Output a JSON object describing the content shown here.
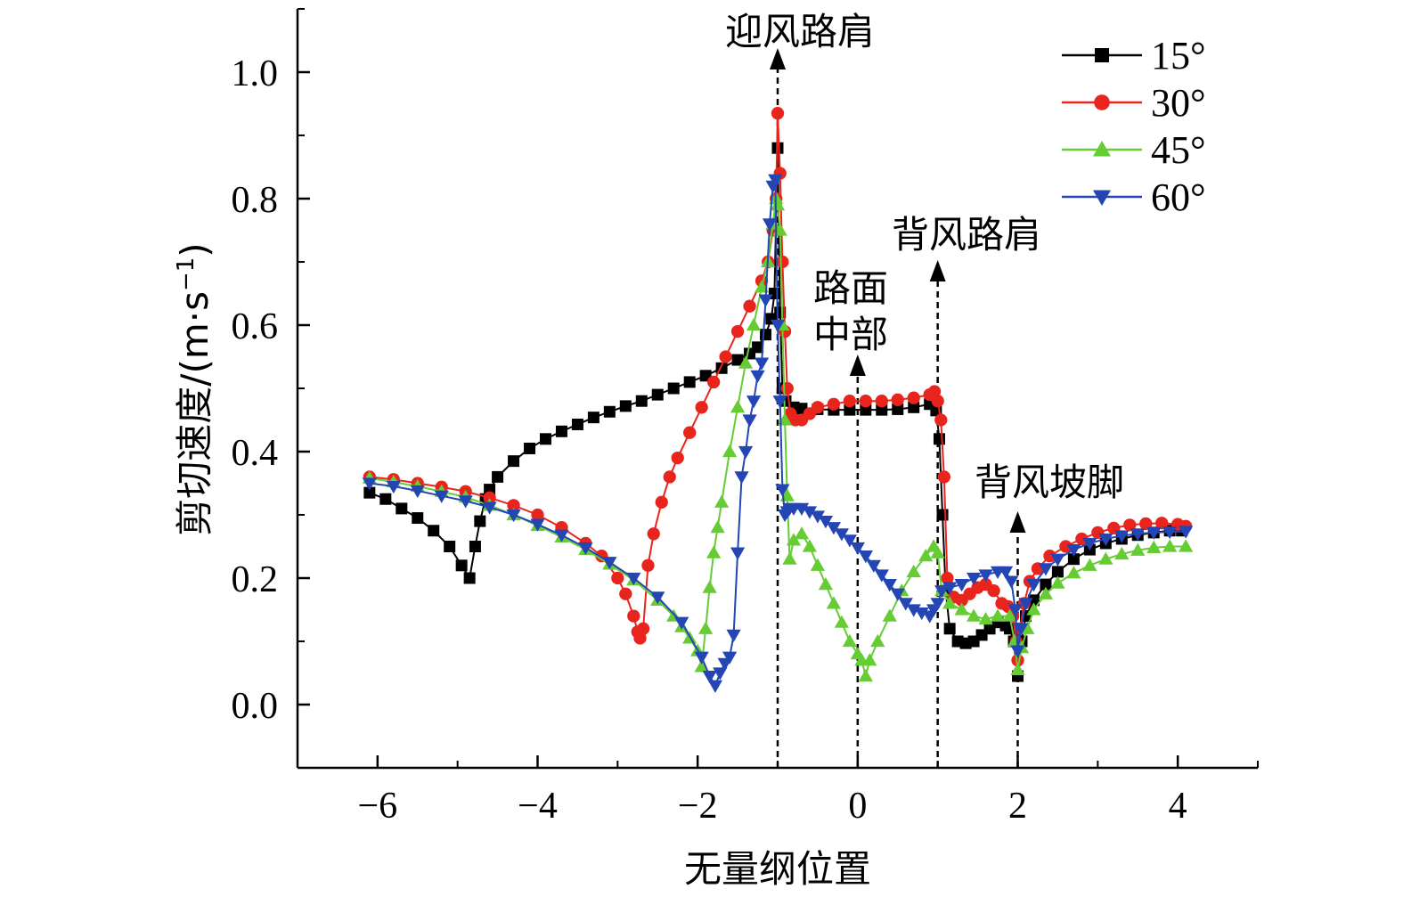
{
  "chart_data": {
    "type": "scatter",
    "title": "",
    "xlabel": "无量纲位置",
    "ylabel": "剪切速度/(m·s",
    "ylabel_sup": "−1",
    "ylabel_close": ")",
    "xlim": [
      -7,
      5
    ],
    "ylim": [
      -0.1,
      1.1
    ],
    "x_ticks": [
      -6,
      -4,
      -2,
      0,
      2,
      4
    ],
    "x_tick_labels": [
      "−6",
      "−4",
      "−2",
      "0",
      "2",
      "4"
    ],
    "y_ticks": [
      0.0,
      0.2,
      0.4,
      0.6,
      0.8,
      1.0
    ],
    "y_tick_labels": [
      "0.0",
      "0.2",
      "0.4",
      "0.6",
      "0.8",
      "1.0"
    ],
    "legend_position": "top-right",
    "grid": false,
    "annotations": [
      {
        "text": "迎风路肩",
        "x": -1
      },
      {
        "text": "路面",
        "text2": "中部",
        "x": 0
      },
      {
        "text": "背风路肩",
        "x": 1
      },
      {
        "text": "背风坡脚",
        "x": 2
      }
    ],
    "series": [
      {
        "name": "15°",
        "color": "#000000",
        "marker": "square",
        "x": [
          -6.1,
          -5.9,
          -5.7,
          -5.5,
          -5.3,
          -5.1,
          -4.95,
          -4.85,
          -4.78,
          -4.72,
          -4.65,
          -4.6,
          -4.5,
          -4.3,
          -4.1,
          -3.9,
          -3.7,
          -3.5,
          -3.3,
          -3.1,
          -2.9,
          -2.7,
          -2.5,
          -2.3,
          -2.1,
          -1.9,
          -1.7,
          -1.5,
          -1.35,
          -1.25,
          -1.15,
          -1.08,
          -1.04,
          -1.0,
          -0.97,
          -0.94,
          -0.9,
          -0.8,
          -0.7,
          -0.5,
          -0.3,
          -0.1,
          0.1,
          0.3,
          0.5,
          0.7,
          0.9,
          0.98,
          1.02,
          1.06,
          1.1,
          1.15,
          1.25,
          1.35,
          1.45,
          1.55,
          1.65,
          1.75,
          1.85,
          1.9,
          1.95,
          2.0,
          2.05,
          2.1,
          2.2,
          2.35,
          2.5,
          2.7,
          2.9,
          3.1,
          3.3,
          3.5,
          3.7,
          3.9,
          4.05
        ],
        "y": [
          0.335,
          0.325,
          0.31,
          0.295,
          0.275,
          0.25,
          0.22,
          0.2,
          0.25,
          0.29,
          0.325,
          0.34,
          0.36,
          0.385,
          0.405,
          0.42,
          0.432,
          0.443,
          0.454,
          0.463,
          0.472,
          0.48,
          0.49,
          0.5,
          0.51,
          0.52,
          0.532,
          0.545,
          0.555,
          0.565,
          0.585,
          0.61,
          0.65,
          0.88,
          0.62,
          0.5,
          0.48,
          0.47,
          0.468,
          0.467,
          0.466,
          0.466,
          0.466,
          0.466,
          0.467,
          0.47,
          0.475,
          0.465,
          0.42,
          0.3,
          0.18,
          0.12,
          0.1,
          0.097,
          0.1,
          0.11,
          0.12,
          0.13,
          0.125,
          0.12,
          0.1,
          0.045,
          0.1,
          0.14,
          0.165,
          0.19,
          0.21,
          0.23,
          0.245,
          0.255,
          0.262,
          0.268,
          0.272,
          0.275,
          0.275
        ]
      },
      {
        "name": "30°",
        "color": "#e8241c",
        "marker": "circle",
        "x": [
          -6.1,
          -5.8,
          -5.5,
          -5.2,
          -4.9,
          -4.6,
          -4.3,
          -4.0,
          -3.7,
          -3.4,
          -3.2,
          -3.0,
          -2.9,
          -2.8,
          -2.75,
          -2.72,
          -2.68,
          -2.62,
          -2.55,
          -2.45,
          -2.35,
          -2.25,
          -2.1,
          -1.95,
          -1.8,
          -1.65,
          -1.5,
          -1.35,
          -1.2,
          -1.12,
          -1.06,
          -1.02,
          -1.0,
          -0.97,
          -0.94,
          -0.91,
          -0.88,
          -0.84,
          -0.78,
          -0.7,
          -0.6,
          -0.5,
          -0.3,
          -0.1,
          0.1,
          0.3,
          0.5,
          0.7,
          0.9,
          0.96,
          1.0,
          1.04,
          1.08,
          1.12,
          1.2,
          1.3,
          1.4,
          1.5,
          1.6,
          1.7,
          1.8,
          1.88,
          1.94,
          1.98,
          2.0,
          2.03,
          2.08,
          2.15,
          2.25,
          2.4,
          2.6,
          2.8,
          3.0,
          3.2,
          3.4,
          3.6,
          3.8,
          4.0,
          4.1
        ],
        "y": [
          0.36,
          0.356,
          0.35,
          0.344,
          0.337,
          0.327,
          0.315,
          0.3,
          0.28,
          0.255,
          0.235,
          0.2,
          0.175,
          0.14,
          0.115,
          0.105,
          0.12,
          0.22,
          0.27,
          0.32,
          0.36,
          0.39,
          0.43,
          0.47,
          0.51,
          0.55,
          0.59,
          0.63,
          0.67,
          0.7,
          0.75,
          0.8,
          0.935,
          0.84,
          0.7,
          0.59,
          0.5,
          0.46,
          0.45,
          0.45,
          0.46,
          0.47,
          0.475,
          0.48,
          0.48,
          0.48,
          0.482,
          0.485,
          0.49,
          0.495,
          0.48,
          0.45,
          0.36,
          0.2,
          0.17,
          0.165,
          0.175,
          0.185,
          0.19,
          0.18,
          0.16,
          0.155,
          0.14,
          0.1,
          0.07,
          0.12,
          0.16,
          0.195,
          0.215,
          0.235,
          0.25,
          0.262,
          0.272,
          0.279,
          0.284,
          0.286,
          0.287,
          0.285,
          0.282
        ]
      },
      {
        "name": "45°",
        "color": "#66cc33",
        "marker": "triangle-up",
        "x": [
          -6.1,
          -5.8,
          -5.5,
          -5.2,
          -4.9,
          -4.6,
          -4.3,
          -4.0,
          -3.7,
          -3.4,
          -3.1,
          -2.8,
          -2.5,
          -2.3,
          -2.2,
          -2.1,
          -2.0,
          -1.95,
          -1.9,
          -1.85,
          -1.8,
          -1.75,
          -1.7,
          -1.6,
          -1.5,
          -1.4,
          -1.3,
          -1.2,
          -1.12,
          -1.06,
          -1.02,
          -1.0,
          -0.97,
          -0.94,
          -0.91,
          -0.88,
          -0.85,
          -0.8,
          -0.7,
          -0.6,
          -0.5,
          -0.4,
          -0.3,
          -0.2,
          -0.1,
          0.0,
          0.05,
          0.1,
          0.15,
          0.25,
          0.4,
          0.55,
          0.7,
          0.85,
          0.95,
          1.0,
          1.05,
          1.15,
          1.3,
          1.45,
          1.6,
          1.75,
          1.9,
          1.96,
          2.0,
          2.05,
          2.12,
          2.2,
          2.35,
          2.5,
          2.7,
          2.9,
          3.1,
          3.3,
          3.5,
          3.7,
          3.9,
          4.1
        ],
        "y": [
          0.358,
          0.352,
          0.345,
          0.337,
          0.328,
          0.315,
          0.3,
          0.283,
          0.265,
          0.245,
          0.222,
          0.197,
          0.165,
          0.14,
          0.123,
          0.105,
          0.085,
          0.06,
          0.12,
          0.185,
          0.24,
          0.28,
          0.32,
          0.4,
          0.47,
          0.54,
          0.6,
          0.66,
          0.7,
          0.76,
          0.8,
          0.79,
          0.75,
          0.6,
          0.45,
          0.33,
          0.23,
          0.26,
          0.27,
          0.25,
          0.22,
          0.19,
          0.16,
          0.13,
          0.1,
          0.08,
          0.07,
          0.045,
          0.07,
          0.1,
          0.14,
          0.18,
          0.21,
          0.235,
          0.25,
          0.24,
          0.18,
          0.16,
          0.15,
          0.14,
          0.135,
          0.14,
          0.14,
          0.1,
          0.055,
          0.09,
          0.12,
          0.15,
          0.175,
          0.192,
          0.208,
          0.22,
          0.23,
          0.238,
          0.244,
          0.248,
          0.25,
          0.25
        ]
      },
      {
        "name": "60°",
        "color": "#2445b4",
        "marker": "triangle-down",
        "x": [
          -6.1,
          -5.8,
          -5.5,
          -5.2,
          -4.9,
          -4.6,
          -4.3,
          -4.0,
          -3.7,
          -3.4,
          -3.1,
          -2.8,
          -2.5,
          -2.2,
          -1.95,
          -1.85,
          -1.78,
          -1.72,
          -1.66,
          -1.6,
          -1.55,
          -1.5,
          -1.45,
          -1.4,
          -1.35,
          -1.3,
          -1.25,
          -1.2,
          -1.15,
          -1.1,
          -1.06,
          -1.03,
          -1.0,
          -0.97,
          -0.94,
          -0.91,
          -0.88,
          -0.85,
          -0.8,
          -0.7,
          -0.6,
          -0.5,
          -0.4,
          -0.3,
          -0.2,
          -0.1,
          0.0,
          0.1,
          0.2,
          0.3,
          0.4,
          0.5,
          0.6,
          0.7,
          0.8,
          0.9,
          0.95,
          1.0,
          1.05,
          1.15,
          1.3,
          1.45,
          1.6,
          1.75,
          1.85,
          1.92,
          1.97,
          2.0,
          2.04,
          2.1,
          2.2,
          2.35,
          2.5,
          2.7,
          2.9,
          3.1,
          3.3,
          3.5,
          3.7,
          3.9,
          4.1
        ],
        "y": [
          0.35,
          0.345,
          0.338,
          0.33,
          0.322,
          0.312,
          0.3,
          0.285,
          0.268,
          0.248,
          0.225,
          0.2,
          0.17,
          0.13,
          0.075,
          0.045,
          0.03,
          0.05,
          0.065,
          0.075,
          0.11,
          0.24,
          0.36,
          0.4,
          0.45,
          0.48,
          0.52,
          0.54,
          0.64,
          0.76,
          0.82,
          0.83,
          0.6,
          0.48,
          0.34,
          0.3,
          0.305,
          0.31,
          0.31,
          0.31,
          0.305,
          0.298,
          0.29,
          0.28,
          0.27,
          0.26,
          0.248,
          0.235,
          0.22,
          0.205,
          0.19,
          0.175,
          0.16,
          0.15,
          0.145,
          0.14,
          0.15,
          0.16,
          0.18,
          0.185,
          0.19,
          0.2,
          0.205,
          0.21,
          0.21,
          0.195,
          0.15,
          0.085,
          0.12,
          0.16,
          0.19,
          0.215,
          0.23,
          0.245,
          0.255,
          0.262,
          0.267,
          0.27,
          0.272,
          0.273,
          0.274
        ]
      }
    ]
  }
}
